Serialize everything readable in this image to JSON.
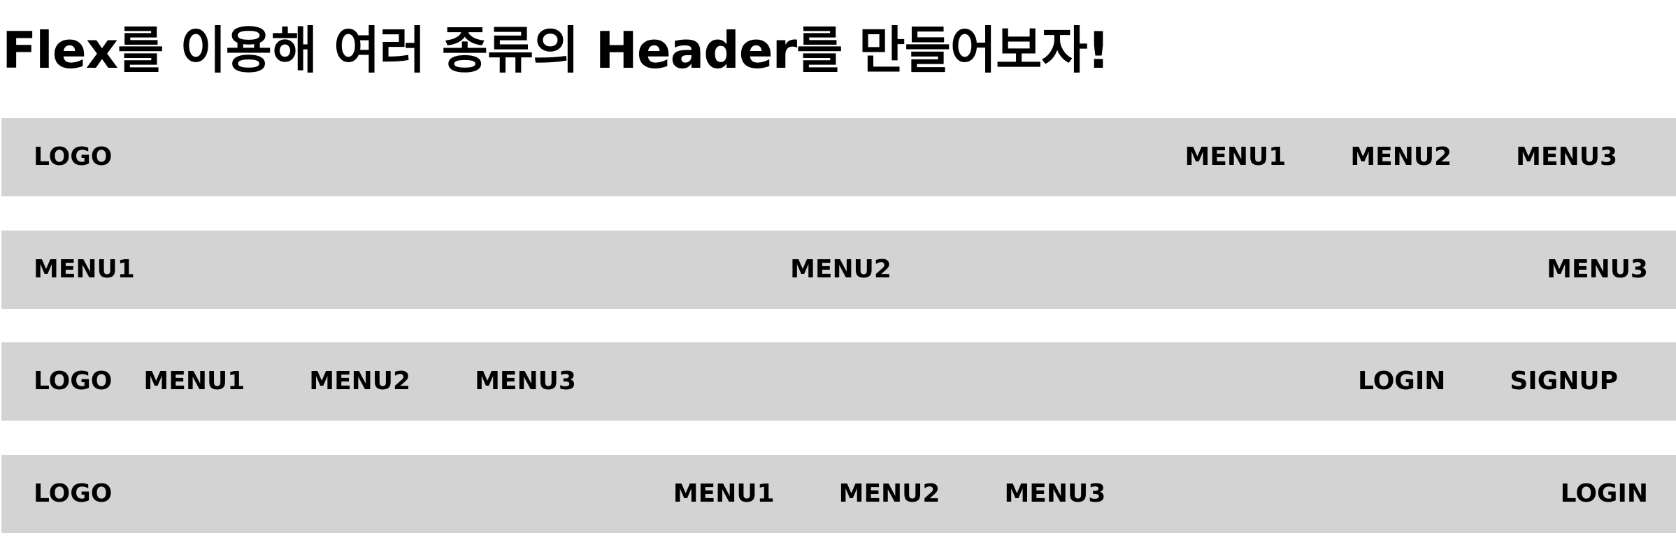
{
  "page": {
    "title": "Flex를 이용해 여러 종류의 Header를 만들어보자!"
  },
  "colors": {
    "header_background": "#d3d3d3",
    "text": "#000000",
    "page_background": "#ffffff"
  },
  "header1": {
    "logo": "LOGO",
    "menus": [
      "MENU1",
      "MENU2",
      "MENU3"
    ]
  },
  "header2": {
    "menus": [
      "MENU1",
      "MENU2",
      "MENU3"
    ]
  },
  "header3": {
    "logo": "LOGO",
    "menus": [
      "MENU1",
      "MENU2",
      "MENU3"
    ],
    "login": "LOGIN",
    "signup": "SIGNUP"
  },
  "header4": {
    "logo": "LOGO",
    "menus": [
      "MENU1",
      "MENU2",
      "MENU3"
    ],
    "login": "LOGIN"
  }
}
